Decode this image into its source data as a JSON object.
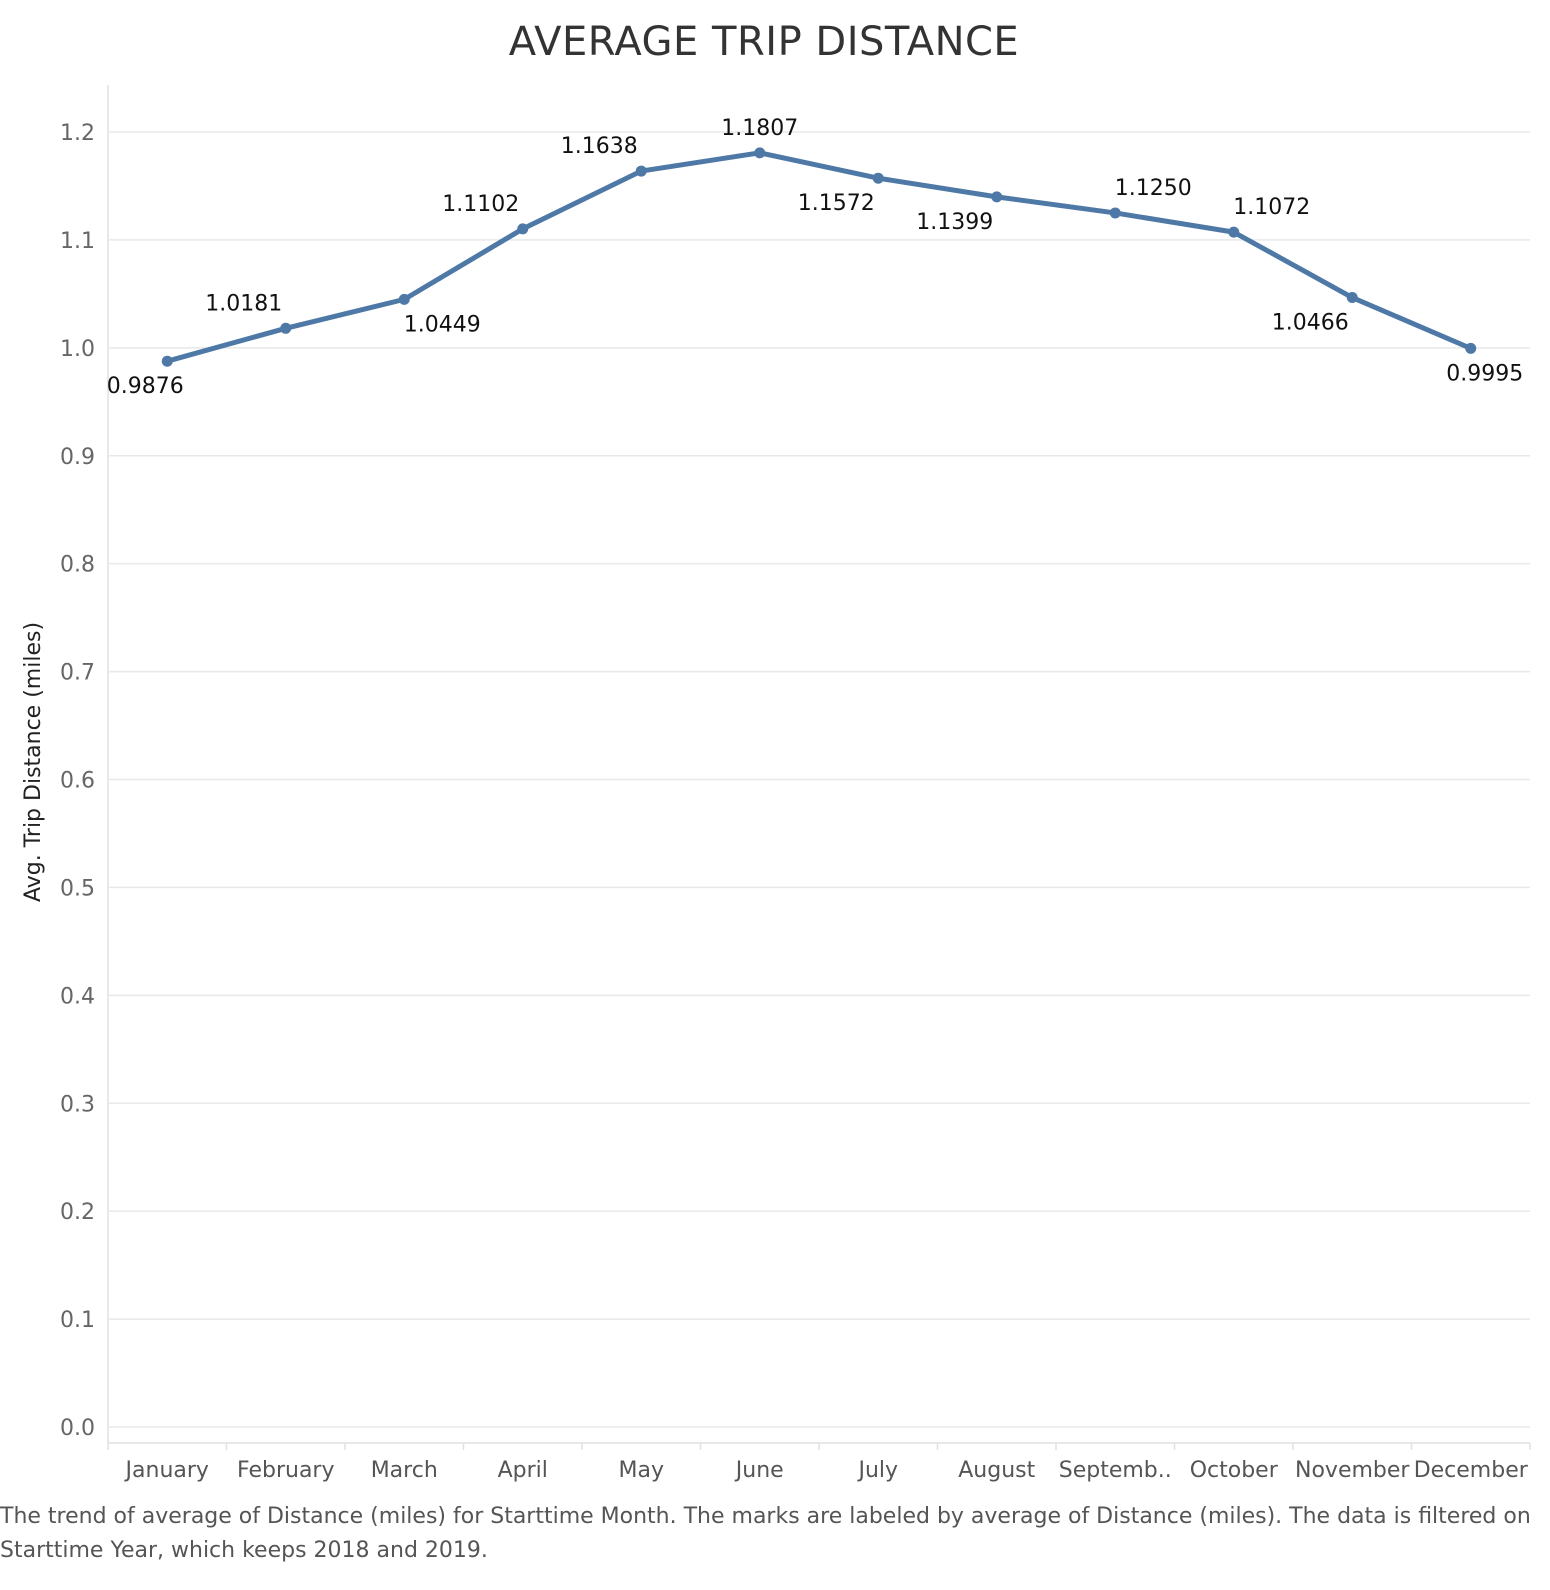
{
  "chart_data": {
    "type": "line",
    "title": "AVERAGE TRIP DISTANCE",
    "ylabel": "Avg. Trip Distance (miles)",
    "xlabel": "",
    "categories": [
      "January",
      "February",
      "March",
      "April",
      "May",
      "June",
      "July",
      "August",
      "Septemb..",
      "October",
      "November",
      "December"
    ],
    "series": [
      {
        "values": [
          0.9876,
          1.0181,
          1.0449,
          1.1102,
          1.1638,
          1.1807,
          1.1572,
          1.1399,
          1.125,
          1.1072,
          1.0466,
          0.9995
        ],
        "labels": [
          "0.9876",
          "1.0181",
          "1.0449",
          "1.1102",
          "1.1638",
          "1.1807",
          "1.1572",
          "1.1399",
          "1.1250",
          "1.1072",
          "1.0466",
          "0.9995"
        ],
        "label_positions": [
          "below",
          "above",
          "below",
          "above",
          "above",
          "above",
          "below",
          "below",
          "above",
          "above",
          "below",
          "below"
        ],
        "color": "#4e79a7"
      }
    ],
    "ylim": [
      0,
      1.2
    ],
    "yticks": [
      "0.0",
      "0.1",
      "0.2",
      "0.3",
      "0.4",
      "0.5",
      "0.6",
      "0.7",
      "0.8",
      "0.9",
      "1.0",
      "1.1",
      "1.2"
    ],
    "grid": true,
    "legend": "none"
  },
  "caption": "The trend of average of Distance (miles) for Starttime Month.  The marks are labeled by average of Distance (miles). The data is filtered on Starttime Year, which keeps 2018 and 2019."
}
